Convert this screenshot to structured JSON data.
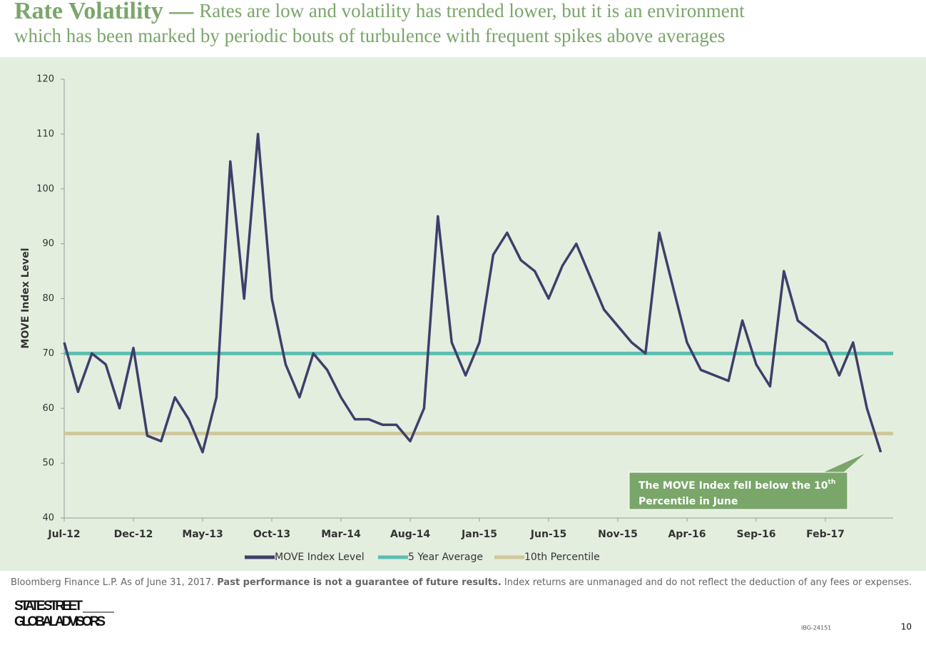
{
  "header": {
    "title": "Rate Volatility —",
    "subtitle_line1": "Rates are low and volatility has trended lower, but it is an environment",
    "subtitle_line2": "which has been marked by periodic bouts of turbulence with frequent spikes above averages"
  },
  "chart_data": {
    "type": "line",
    "y_label": "MOVE Index Level",
    "categories": [
      "Jul-12",
      null,
      null,
      null,
      null,
      "Dec-12",
      null,
      null,
      null,
      null,
      "May-13",
      null,
      null,
      null,
      null,
      "Oct-13",
      null,
      null,
      null,
      null,
      "Mar-14",
      null,
      null,
      null,
      null,
      "Aug-14",
      null,
      null,
      null,
      null,
      "Jan-15",
      null,
      null,
      null,
      null,
      "Jun-15",
      null,
      null,
      null,
      null,
      "Nov-15",
      null,
      null,
      null,
      null,
      "Apr-16",
      null,
      null,
      null,
      null,
      "Sep-16",
      null,
      null,
      null,
      null,
      "Feb-17",
      null,
      null,
      null,
      null
    ],
    "series": [
      {
        "name": "MOVE Index Level",
        "color": "#3f3f6b",
        "values": [
          72,
          63,
          70,
          68,
          60,
          71,
          55,
          54,
          62,
          58,
          52,
          62,
          105,
          80,
          110,
          80,
          68,
          62,
          70,
          67,
          62,
          58,
          58,
          57,
          57,
          54,
          60,
          95,
          72,
          66,
          72,
          88,
          92,
          87,
          85,
          80,
          86,
          90,
          84,
          78,
          75,
          72,
          70,
          92,
          82,
          72,
          67,
          66,
          65,
          76,
          68,
          64,
          85,
          76,
          74,
          72,
          66,
          72,
          60,
          52
        ]
      }
    ],
    "reference_lines": [
      {
        "name": "5 Year Average",
        "color": "#5cbfb0",
        "value": 70
      },
      {
        "name": "10th Percentile",
        "color": "#cfc79a",
        "value": 55.4
      }
    ],
    "ylim": [
      40,
      120
    ],
    "yticks": [
      40,
      50,
      60,
      70,
      80,
      90,
      100,
      110,
      120
    ],
    "annotation": {
      "text_before": "The MOVE Index fell below the 10",
      "sup": "th",
      "text_after": "Percentile in June"
    }
  },
  "footer": {
    "source": "Bloomberg Finance L.P. As of June 31, 2017.",
    "bold": "Past performance is not a guarantee of future results.",
    "rest": "Index returns are unmanaged and do not reflect the deduction of any fees or expenses.",
    "logo_line1": "STATE STREET",
    "logo_line2": "GLOBAL ADVISORS",
    "code": "IBG-24151",
    "page": "10"
  }
}
